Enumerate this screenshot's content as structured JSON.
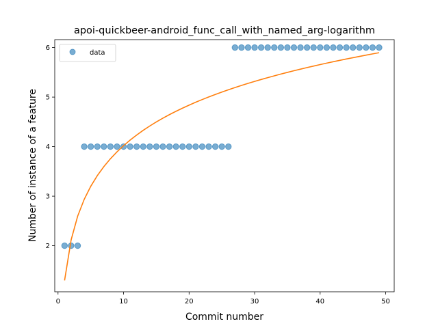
{
  "chart_data": {
    "type": "scatter",
    "title": "apoi-quickbeer-android_func_call_with_named_arg-logarithm",
    "xlabel": "Commit number",
    "ylabel": "Number of instance of a feature",
    "xlim": [
      -0.5,
      51.3
    ],
    "ylim": [
      1.07,
      6.16
    ],
    "xticks": [
      0,
      10,
      20,
      30,
      40,
      50
    ],
    "yticks": [
      2,
      3,
      4,
      5,
      6
    ],
    "grid": false,
    "legend": {
      "placement": "top-left",
      "entries": [
        "data"
      ]
    },
    "series": [
      {
        "name": "data",
        "kind": "scatter",
        "color": "#1f77b4",
        "x": [
          1,
          2,
          3,
          4,
          5,
          6,
          7,
          8,
          9,
          10,
          11,
          12,
          13,
          14,
          15,
          16,
          17,
          18,
          19,
          20,
          21,
          22,
          23,
          24,
          25,
          26,
          27,
          28,
          29,
          30,
          31,
          32,
          33,
          34,
          35,
          36,
          37,
          38,
          39,
          40,
          41,
          42,
          43,
          44,
          45,
          46,
          47,
          48,
          49
        ],
        "y": [
          2,
          2,
          2,
          4,
          4,
          4,
          4,
          4,
          4,
          4,
          4,
          4,
          4,
          4,
          4,
          4,
          4,
          4,
          4,
          4,
          4,
          4,
          4,
          4,
          4,
          4,
          6,
          6,
          6,
          6,
          6,
          6,
          6,
          6,
          6,
          6,
          6,
          6,
          6,
          6,
          6,
          6,
          6,
          6,
          6,
          6,
          6,
          6,
          6
        ]
      },
      {
        "kind": "line",
        "color": "#ff7f0e",
        "fit": {
          "a": 1.181,
          "b": 1.3
        },
        "x_range": [
          1,
          49
        ]
      }
    ]
  }
}
